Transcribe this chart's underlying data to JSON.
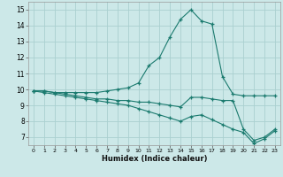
{
  "xlabel": "Humidex (Indice chaleur)",
  "xlim": [
    -0.5,
    23.5
  ],
  "ylim": [
    6.5,
    15.5
  ],
  "xticks": [
    0,
    1,
    2,
    3,
    4,
    5,
    6,
    7,
    8,
    9,
    10,
    11,
    12,
    13,
    14,
    15,
    16,
    17,
    18,
    19,
    20,
    21,
    22,
    23
  ],
  "yticks": [
    7,
    8,
    9,
    10,
    11,
    12,
    13,
    14,
    15
  ],
  "background_color": "#cce8e8",
  "grid_color": "#aad0d0",
  "line_color": "#1a7a6e",
  "x": [
    0,
    1,
    2,
    3,
    4,
    5,
    6,
    7,
    8,
    9,
    10,
    11,
    12,
    13,
    14,
    15,
    16,
    17,
    18,
    19,
    20,
    21,
    22,
    23
  ],
  "y_top": [
    9.9,
    9.9,
    9.8,
    9.8,
    9.8,
    9.8,
    9.8,
    9.9,
    10.0,
    10.1,
    10.4,
    11.5,
    12.0,
    13.3,
    14.4,
    15.0,
    14.3,
    14.1,
    10.8,
    9.7,
    9.6,
    9.6,
    9.6,
    9.6
  ],
  "y_mid": [
    9.9,
    9.9,
    9.8,
    9.7,
    9.6,
    9.5,
    9.4,
    9.4,
    9.3,
    9.3,
    9.2,
    9.2,
    9.1,
    9.0,
    8.9,
    9.5,
    9.5,
    9.4,
    9.3,
    9.3,
    7.5,
    6.8,
    7.0,
    7.5
  ],
  "y_bot": [
    9.9,
    9.8,
    9.7,
    9.6,
    9.5,
    9.4,
    9.3,
    9.2,
    9.1,
    9.0,
    8.8,
    8.6,
    8.4,
    8.2,
    8.0,
    8.3,
    8.4,
    8.1,
    7.8,
    7.5,
    7.3,
    6.6,
    6.9,
    7.4
  ]
}
